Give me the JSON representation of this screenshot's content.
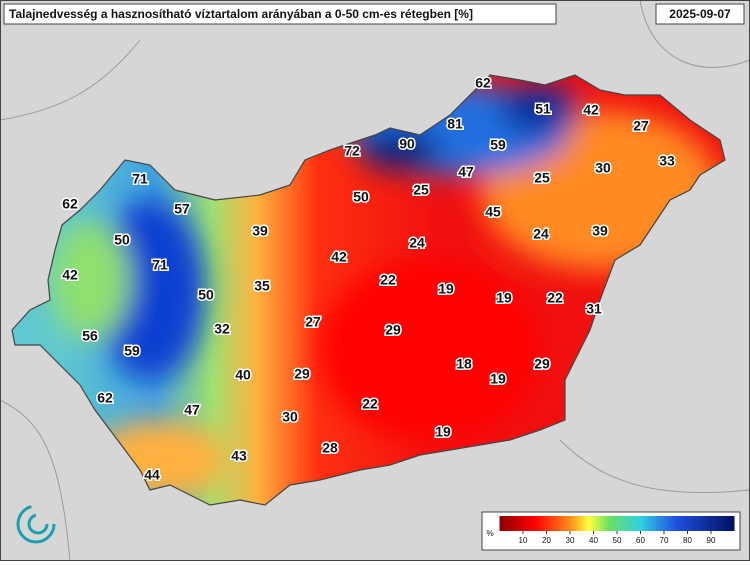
{
  "title": "Talajnedvesség a hasznosítható víztartalom arányában a 0-50 cm-es rétegben [%]",
  "date": "2025-09-07",
  "points": [
    62,
    51,
    42,
    81,
    27,
    72,
    90,
    59,
    30,
    33,
    71,
    47,
    25,
    25,
    62,
    57,
    50,
    45,
    50,
    39,
    24,
    24,
    39,
    71,
    42,
    42,
    22,
    19,
    19,
    22,
    35,
    50,
    31,
    27,
    32,
    29,
    56,
    59,
    18,
    29,
    40,
    29,
    19,
    62,
    47,
    30,
    22,
    19,
    28,
    43,
    44
  ],
  "colorbar": {
    "label": "%",
    "lim": [
      0,
      100
    ],
    "ticks": [
      10,
      20,
      30,
      40,
      50,
      60,
      70,
      80,
      90
    ]
  }
}
